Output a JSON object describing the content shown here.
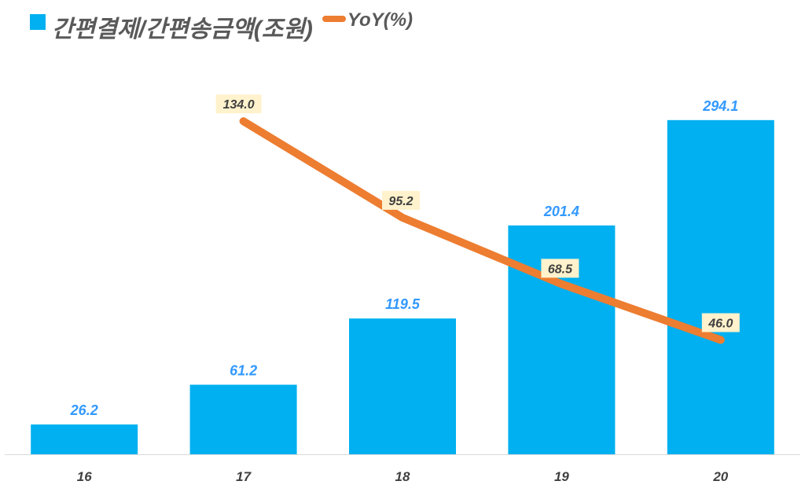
{
  "chart_data": {
    "type": "bar+line",
    "categories": [
      "16",
      "17",
      "18",
      "19",
      "20"
    ],
    "series": [
      {
        "name": "간편결제/간편송금액(조원)",
        "type": "bar",
        "axis": "primary",
        "color": "#00b0f0",
        "values": [
          26.2,
          61.2,
          119.5,
          201.4,
          294.1
        ],
        "labels": [
          "26.2",
          "61.2",
          "119.5",
          "201.4",
          "294.1"
        ]
      },
      {
        "name": "YoY(%)",
        "type": "line",
        "axis": "secondary",
        "color": "#ed7d31",
        "values": [
          null,
          134.0,
          95.2,
          68.5,
          46.0
        ],
        "labels": [
          "",
          "134.0",
          "95.2",
          "68.5",
          "46.0"
        ]
      }
    ],
    "ylim": [
      0,
      350
    ],
    "y2lim": [
      0,
      160
    ],
    "grid": false,
    "legend": "top-left",
    "bar_label_color": "#3399ff",
    "line_label_bg": "#fff2cc"
  }
}
